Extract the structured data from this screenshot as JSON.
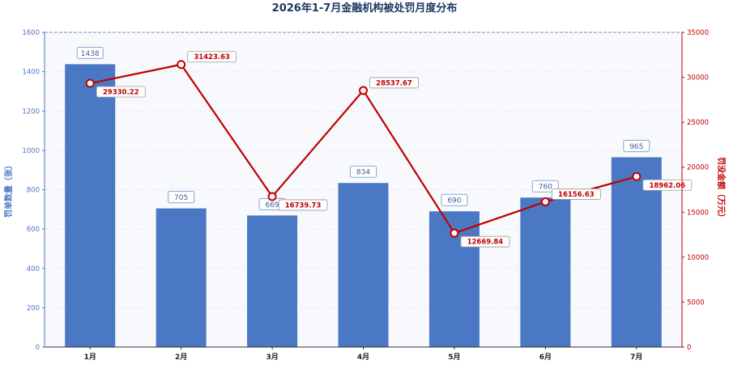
{
  "chart_data": {
    "type": "bar+line",
    "title": "2026年1-7月金融机构被处罚月度分布",
    "categories": [
      "1月",
      "2月",
      "3月",
      "4月",
      "5月",
      "6月",
      "7月"
    ],
    "series": [
      {
        "name": "罚单数量（张）",
        "type": "bar",
        "axis": "left",
        "values": [
          1438,
          705,
          669,
          834,
          690,
          760,
          965
        ]
      },
      {
        "name": "罚没金额（万元）",
        "type": "line",
        "axis": "right",
        "values": [
          29330.22,
          31423.63,
          16739.73,
          28537.67,
          12669.84,
          16156.63,
          18962.06
        ]
      }
    ],
    "ylabel_left": "罚单数量（张）",
    "ylabel_right": "罚没金额（万元）",
    "ylim_left": [
      0,
      1600
    ],
    "yticks_left": [
      0,
      200,
      400,
      600,
      800,
      1000,
      1200,
      1400,
      1600
    ],
    "ylim_right": [
      0,
      35000
    ],
    "yticks_right": [
      0,
      5000,
      10000,
      15000,
      20000,
      25000,
      30000,
      35000
    ],
    "grid": "horizontal dashed",
    "colors": {
      "bar": "#4a78c4",
      "line": "#c00000",
      "left_axis": "#4a78c4",
      "right_axis": "#c00000",
      "title": "#1f3864"
    }
  }
}
